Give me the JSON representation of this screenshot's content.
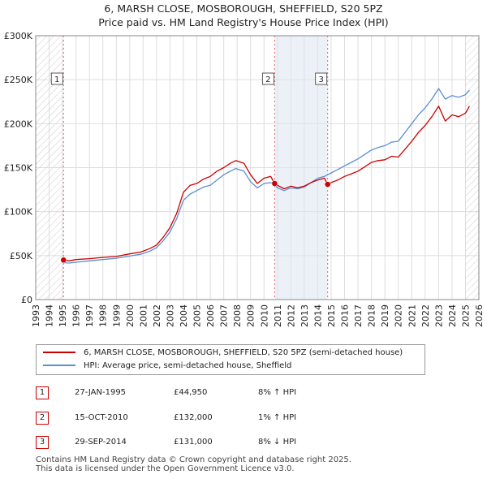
{
  "header": {
    "title_line1": "6, MARSH CLOSE, MOSBOROUGH, SHEFFIELD, S20 5PZ",
    "title_line2": "Price paid vs. HM Land Registry's House Price Index (HPI)"
  },
  "colors": {
    "price_line": "#cc0000",
    "hpi_line": "#5b8fd1",
    "shading": "#dde6f3",
    "grid": "#dddddd"
  },
  "chart_data": {
    "type": "line",
    "title": "6, MARSH CLOSE, MOSBOROUGH, SHEFFIELD, S20 5PZ — Price paid vs. HM Land Registry's House Price Index (HPI)",
    "xlim": [
      1993,
      2026
    ],
    "ylim": [
      0,
      300000
    ],
    "x_ticks": [
      "1993",
      "1994",
      "1995",
      "1996",
      "1997",
      "1998",
      "1999",
      "2000",
      "2001",
      "2002",
      "2003",
      "2004",
      "2005",
      "2006",
      "2007",
      "2008",
      "2009",
      "2010",
      "2011",
      "2012",
      "2013",
      "2014",
      "2015",
      "2016",
      "2017",
      "2018",
      "2019",
      "2020",
      "2021",
      "2022",
      "2023",
      "2024",
      "2025",
      "2026"
    ],
    "y_ticks": [
      {
        "value": 0,
        "label": "£0"
      },
      {
        "value": 50000,
        "label": "£50K"
      },
      {
        "value": 100000,
        "label": "£100K"
      },
      {
        "value": 150000,
        "label": "£150K"
      },
      {
        "value": 200000,
        "label": "£200K"
      },
      {
        "value": 250000,
        "label": "£250K"
      },
      {
        "value": 300000,
        "label": "£300K"
      }
    ],
    "hatched_before": 1995.07,
    "hatched_after": 2025.0,
    "series": [
      {
        "name": "6, MARSH CLOSE, MOSBOROUGH, SHEFFIELD, S20 5PZ (semi-detached house)",
        "color": "#cc0000",
        "points": [
          [
            1995.07,
            44950
          ],
          [
            1995.5,
            44000
          ],
          [
            1996,
            45500
          ],
          [
            1997,
            46500
          ],
          [
            1998,
            48000
          ],
          [
            1999,
            49000
          ],
          [
            2000,
            52000
          ],
          [
            2000.8,
            54000
          ],
          [
            2001.5,
            58000
          ],
          [
            2002,
            62000
          ],
          [
            2002.5,
            71000
          ],
          [
            2003,
            82000
          ],
          [
            2003.5,
            98000
          ],
          [
            2004,
            122000
          ],
          [
            2004.5,
            130000
          ],
          [
            2005,
            132000
          ],
          [
            2005.5,
            137000
          ],
          [
            2006,
            140000
          ],
          [
            2006.5,
            146000
          ],
          [
            2007,
            150000
          ],
          [
            2007.5,
            155000
          ],
          [
            2007.9,
            158000
          ],
          [
            2008.5,
            155000
          ],
          [
            2009,
            142000
          ],
          [
            2009.5,
            132000
          ],
          [
            2010,
            138000
          ],
          [
            2010.5,
            140000
          ],
          [
            2010.79,
            132000
          ],
          [
            2011,
            130000
          ],
          [
            2011.5,
            126000
          ],
          [
            2012,
            129000
          ],
          [
            2012.5,
            127000
          ],
          [
            2013,
            129000
          ],
          [
            2013.5,
            133000
          ],
          [
            2014,
            136000
          ],
          [
            2014.5,
            138000
          ],
          [
            2014.74,
            131000
          ],
          [
            2015,
            133000
          ],
          [
            2015.5,
            136000
          ],
          [
            2016,
            140000
          ],
          [
            2016.5,
            143000
          ],
          [
            2017,
            146000
          ],
          [
            2017.5,
            151000
          ],
          [
            2018,
            156000
          ],
          [
            2018.5,
            158000
          ],
          [
            2019,
            159000
          ],
          [
            2019.5,
            163000
          ],
          [
            2020,
            162000
          ],
          [
            2020.5,
            171000
          ],
          [
            2021,
            180000
          ],
          [
            2021.5,
            190000
          ],
          [
            2022,
            198000
          ],
          [
            2022.5,
            208000
          ],
          [
            2023,
            220000
          ],
          [
            2023.5,
            203000
          ],
          [
            2024,
            210000
          ],
          [
            2024.5,
            208000
          ],
          [
            2025,
            212000
          ],
          [
            2025.3,
            220000
          ]
        ]
      },
      {
        "name": "HPI: Average price, semi-detached house, Sheffield",
        "color": "#5b8fd1",
        "points": [
          [
            1995.07,
            42000
          ],
          [
            1995.5,
            41500
          ],
          [
            1996,
            42500
          ],
          [
            1997,
            44000
          ],
          [
            1998,
            45500
          ],
          [
            1999,
            47000
          ],
          [
            2000,
            49500
          ],
          [
            2000.8,
            51500
          ],
          [
            2001.5,
            55000
          ],
          [
            2002,
            59000
          ],
          [
            2002.5,
            67000
          ],
          [
            2003,
            77000
          ],
          [
            2003.5,
            92000
          ],
          [
            2004,
            113000
          ],
          [
            2004.5,
            120000
          ],
          [
            2005,
            124000
          ],
          [
            2005.5,
            128000
          ],
          [
            2006,
            130000
          ],
          [
            2006.5,
            136000
          ],
          [
            2007,
            142000
          ],
          [
            2007.5,
            146000
          ],
          [
            2007.9,
            149000
          ],
          [
            2008.5,
            146000
          ],
          [
            2009,
            134000
          ],
          [
            2009.5,
            127000
          ],
          [
            2010,
            132000
          ],
          [
            2010.5,
            133000
          ],
          [
            2010.79,
            130500
          ],
          [
            2011,
            127000
          ],
          [
            2011.5,
            124000
          ],
          [
            2012,
            127000
          ],
          [
            2012.5,
            126000
          ],
          [
            2013,
            128000
          ],
          [
            2013.5,
            133000
          ],
          [
            2014,
            138000
          ],
          [
            2014.5,
            140000
          ],
          [
            2014.74,
            142000
          ],
          [
            2015,
            144000
          ],
          [
            2015.5,
            148000
          ],
          [
            2016,
            152000
          ],
          [
            2016.5,
            156000
          ],
          [
            2017,
            160000
          ],
          [
            2017.5,
            165000
          ],
          [
            2018,
            170000
          ],
          [
            2018.5,
            173000
          ],
          [
            2019,
            175000
          ],
          [
            2019.5,
            179000
          ],
          [
            2020,
            180000
          ],
          [
            2020.5,
            190000
          ],
          [
            2021,
            200000
          ],
          [
            2021.5,
            210000
          ],
          [
            2022,
            218000
          ],
          [
            2022.5,
            228000
          ],
          [
            2023,
            240000
          ],
          [
            2023.5,
            228000
          ],
          [
            2024,
            232000
          ],
          [
            2024.5,
            230000
          ],
          [
            2025,
            233000
          ],
          [
            2025.3,
            238000
          ]
        ]
      }
    ],
    "sales": [
      {
        "id": "1",
        "x": 1995.07,
        "price": 44950
      },
      {
        "id": "2",
        "x": 2010.79,
        "price": 132000
      },
      {
        "id": "3",
        "x": 2014.74,
        "price": 131000
      }
    ]
  },
  "legend": {
    "entries": [
      {
        "label": "6, MARSH CLOSE, MOSBOROUGH, SHEFFIELD, S20 5PZ (semi-detached house)",
        "color": "#cc0000"
      },
      {
        "label": "HPI: Average price, semi-detached house, Sheffield",
        "color": "#5b8fd1"
      }
    ]
  },
  "sales_table": [
    {
      "num": "1",
      "date": "27-JAN-1995",
      "price": "£44,950",
      "hpi": "8% ↑ HPI"
    },
    {
      "num": "2",
      "date": "15-OCT-2010",
      "price": "£132,000",
      "hpi": "1% ↑ HPI"
    },
    {
      "num": "3",
      "date": "29-SEP-2014",
      "price": "£131,000",
      "hpi": "8% ↓ HPI"
    }
  ],
  "footer": {
    "line1": "Contains HM Land Registry data © Crown copyright and database right 2025.",
    "line2": "This data is licensed under the Open Government Licence v3.0."
  }
}
